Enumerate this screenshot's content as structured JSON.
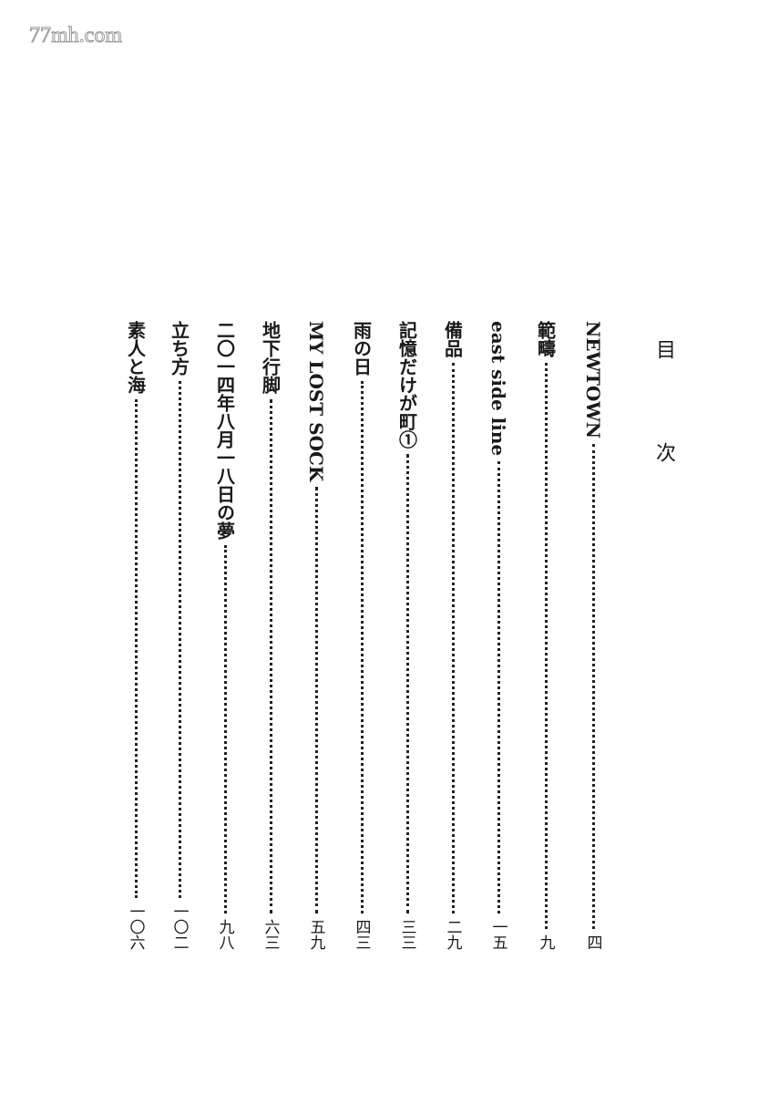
{
  "watermark": "77mh.com",
  "title": "目 次",
  "entries": [
    {
      "title": "NEWTOWN",
      "page": "四"
    },
    {
      "title": "範疇",
      "page": "九"
    },
    {
      "title": "east side line",
      "page": "一五"
    },
    {
      "title": "備品",
      "page": "二九"
    },
    {
      "title": "記憶だけが町①",
      "page": "三三"
    },
    {
      "title": "雨の日",
      "page": "四三"
    },
    {
      "title": "MY LOST SOCK",
      "page": "五九"
    },
    {
      "title": "地下行脚",
      "page": "六三"
    },
    {
      "title": "二〇一四年八月一八日の夢",
      "page": "九八"
    },
    {
      "title": "立ち方",
      "page": "一〇二"
    },
    {
      "title": "素人と海",
      "page": "一〇六"
    }
  ]
}
